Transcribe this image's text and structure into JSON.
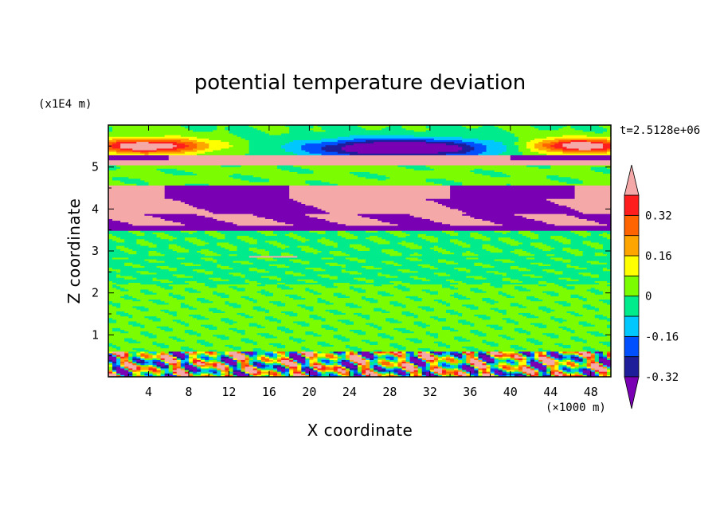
{
  "chart_data": {
    "type": "heatmap",
    "title": "potential temperature deviation",
    "xlabel": "X coordinate",
    "ylabel": "Z coordinate",
    "x_unit": "(×1000 m)",
    "y_unit": "(x1E4 m)",
    "time_label": "t=2.5128e+06",
    "xlim": [
      0,
      50
    ],
    "ylim": [
      0,
      6
    ],
    "x_ticks": [
      4,
      8,
      12,
      16,
      20,
      24,
      28,
      32,
      36,
      40,
      44,
      48
    ],
    "y_ticks": [
      1,
      2,
      3,
      4,
      5
    ],
    "colorbar": {
      "tick_labels": [
        "0.32",
        "0.16",
        "0",
        "-0.16",
        "-0.32"
      ],
      "tick_values": [
        0.32,
        0.16,
        0,
        -0.16,
        -0.32
      ],
      "levels": [
        -0.4,
        -0.32,
        -0.24,
        -0.16,
        -0.08,
        0,
        0.08,
        0.16,
        0.24,
        0.32,
        0.4
      ],
      "colors": [
        "#7a00b4",
        "#1e1e9a",
        "#0050ff",
        "#00c8ff",
        "#00eb8c",
        "#7cfc00",
        "#ffff00",
        "#ffa500",
        "#ff6400",
        "#ff1e1e",
        "#f4a8a8"
      ]
    },
    "bands": [
      {
        "z": [
          0.0,
          0.6
        ],
        "description_value": "mixed -0.4..0.4 turbulent surface layer"
      },
      {
        "z": [
          0.6,
          2.2
        ],
        "value": 0.04
      },
      {
        "z": [
          2.2,
          3.5
        ],
        "value": -0.02
      },
      {
        "z": [
          3.5,
          4.5
        ],
        "value": "alternating -0.4 / +0.4"
      },
      {
        "z": [
          4.5,
          5.1
        ],
        "value": 0.0
      },
      {
        "z": [
          5.1,
          5.3
        ],
        "value": "-0.4 / +0.4"
      },
      {
        "z": [
          5.3,
          6.0
        ],
        "value": "mixed, -0.4 core near x=30, +0.4 near x=4 and x=46"
      }
    ]
  },
  "colors": {
    "background": "#ffffff",
    "axis": "#000000"
  }
}
